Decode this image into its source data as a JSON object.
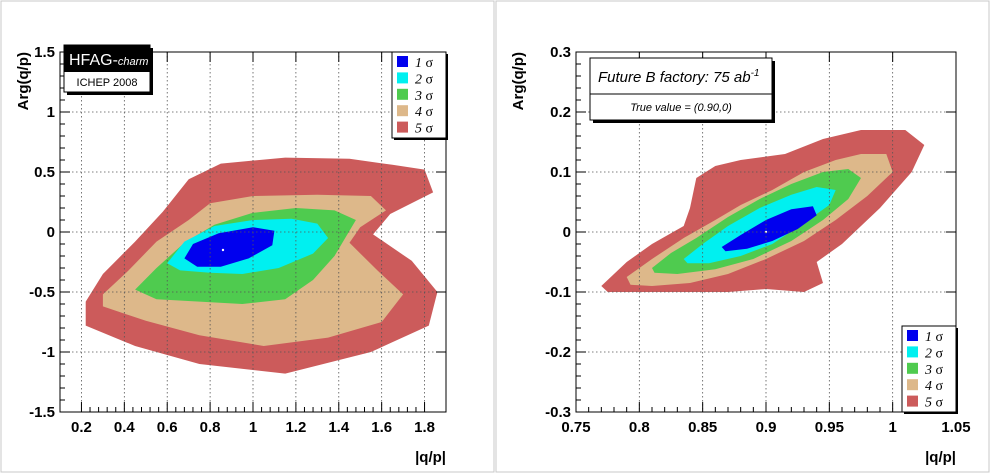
{
  "chart_data": [
    {
      "type": "contour",
      "title": "",
      "xlabel": "|q/p|",
      "ylabel": "Arg(q/p)",
      "xlim": [
        0.1,
        1.9
      ],
      "ylim": [
        -1.5,
        1.5
      ],
      "x_ticks": [
        0.2,
        0.4,
        0.6,
        0.8,
        1,
        1.2,
        1.4,
        1.6,
        1.8
      ],
      "y_ticks": [
        -1.5,
        -1,
        -0.5,
        0,
        0.5,
        1,
        1.5
      ],
      "grid": true,
      "legend_position": "top-right",
      "badge": {
        "title_main": "HFAG-",
        "title_sub": "charm",
        "subtitle": "ICHEP 2008"
      },
      "central_value": [
        0.86,
        -0.15
      ],
      "series": [
        {
          "name": "5",
          "color": "#cc5b5b",
          "polygon": [
            [
              0.22,
              -0.58
            ],
            [
              0.3,
              -0.35
            ],
            [
              0.45,
              -0.08
            ],
            [
              0.58,
              0.17
            ],
            [
              0.7,
              0.44
            ],
            [
              0.85,
              0.57
            ],
            [
              1.15,
              0.62
            ],
            [
              1.45,
              0.61
            ],
            [
              1.65,
              0.56
            ],
            [
              1.8,
              0.52
            ],
            [
              1.84,
              0.33
            ],
            [
              1.64,
              0.15
            ],
            [
              1.56,
              -0.02
            ],
            [
              1.74,
              -0.24
            ],
            [
              1.86,
              -0.5
            ],
            [
              1.82,
              -0.78
            ],
            [
              1.55,
              -1.0
            ],
            [
              1.15,
              -1.18
            ],
            [
              0.75,
              -1.1
            ],
            [
              0.45,
              -0.95
            ],
            [
              0.22,
              -0.78
            ]
          ]
        },
        {
          "name": "4",
          "color": "#ddb88a",
          "polygon": [
            [
              0.3,
              -0.52
            ],
            [
              0.42,
              -0.32
            ],
            [
              0.55,
              -0.08
            ],
            [
              0.7,
              0.1
            ],
            [
              0.8,
              0.24
            ],
            [
              1.0,
              0.3
            ],
            [
              1.3,
              0.31
            ],
            [
              1.55,
              0.3
            ],
            [
              1.62,
              0.18
            ],
            [
              1.5,
              0.04
            ],
            [
              1.45,
              -0.09
            ],
            [
              1.58,
              -0.32
            ],
            [
              1.7,
              -0.52
            ],
            [
              1.6,
              -0.75
            ],
            [
              1.35,
              -0.88
            ],
            [
              1.05,
              -0.95
            ],
            [
              0.75,
              -0.86
            ],
            [
              0.5,
              -0.74
            ],
            [
              0.3,
              -0.62
            ]
          ]
        },
        {
          "name": "3",
          "color": "#4fcb4f",
          "polygon": [
            [
              0.45,
              -0.48
            ],
            [
              0.55,
              -0.3
            ],
            [
              0.68,
              -0.09
            ],
            [
              0.82,
              0.06
            ],
            [
              1.0,
              0.16
            ],
            [
              1.2,
              0.2
            ],
            [
              1.38,
              0.18
            ],
            [
              1.48,
              0.1
            ],
            [
              1.43,
              -0.05
            ],
            [
              1.38,
              -0.2
            ],
            [
              1.28,
              -0.4
            ],
            [
              1.15,
              -0.56
            ],
            [
              0.95,
              -0.6
            ],
            [
              0.75,
              -0.58
            ],
            [
              0.55,
              -0.56
            ]
          ]
        },
        {
          "name": "2",
          "color": "#00f0f0",
          "polygon": [
            [
              0.6,
              -0.26
            ],
            [
              0.68,
              -0.08
            ],
            [
              0.82,
              0.05
            ],
            [
              1.0,
              0.1
            ],
            [
              1.18,
              0.11
            ],
            [
              1.3,
              0.07
            ],
            [
              1.35,
              -0.05
            ],
            [
              1.28,
              -0.18
            ],
            [
              1.12,
              -0.3
            ],
            [
              0.95,
              -0.35
            ],
            [
              0.8,
              -0.34
            ],
            [
              0.66,
              -0.32
            ]
          ]
        },
        {
          "name": "1",
          "color": "#0000ee",
          "polygon": [
            [
              0.68,
              -0.22
            ],
            [
              0.72,
              -0.1
            ],
            [
              0.84,
              -0.01
            ],
            [
              1.0,
              0.04
            ],
            [
              1.1,
              0.01
            ],
            [
              1.09,
              -0.11
            ],
            [
              0.98,
              -0.22
            ],
            [
              0.85,
              -0.29
            ],
            [
              0.74,
              -0.29
            ]
          ]
        }
      ]
    },
    {
      "type": "contour",
      "title": "",
      "xlabel": "|q/p|",
      "ylabel": "Arg(q/p)",
      "xlim": [
        0.75,
        1.05
      ],
      "ylim": [
        -0.3,
        0.3
      ],
      "x_ticks": [
        0.75,
        0.8,
        0.85,
        0.9,
        0.95,
        1,
        1.05
      ],
      "y_ticks": [
        -0.3,
        -0.2,
        -0.1,
        0,
        0.1,
        0.2,
        0.3
      ],
      "grid": true,
      "legend_position": "bottom-right",
      "badge": {
        "title": "Future B factory: 75 ab",
        "title_sup": "-1",
        "subtitle": "True value = (0.90,0)"
      },
      "central_value": [
        0.9,
        0
      ],
      "series": [
        {
          "name": "5",
          "color": "#cc5b5b",
          "polygon": [
            [
              0.77,
              -0.09
            ],
            [
              0.79,
              -0.05
            ],
            [
              0.81,
              -0.02
            ],
            [
              0.835,
              0.01
            ],
            [
              0.84,
              0.04
            ],
            [
              0.845,
              0.09
            ],
            [
              0.86,
              0.11
            ],
            [
              0.88,
              0.12
            ],
            [
              0.915,
              0.13
            ],
            [
              0.945,
              0.155
            ],
            [
              0.975,
              0.17
            ],
            [
              1.01,
              0.17
            ],
            [
              1.025,
              0.145
            ],
            [
              1.015,
              0.1
            ],
            [
              0.99,
              0.04
            ],
            [
              0.96,
              -0.02
            ],
            [
              0.94,
              -0.05
            ],
            [
              0.945,
              -0.085
            ],
            [
              0.93,
              -0.1
            ],
            [
              0.9,
              -0.095
            ],
            [
              0.87,
              -0.1
            ],
            [
              0.835,
              -0.1
            ],
            [
              0.8,
              -0.1
            ],
            [
              0.775,
              -0.1
            ]
          ]
        },
        {
          "name": "4",
          "color": "#ddb88a",
          "polygon": [
            [
              0.79,
              -0.075
            ],
            [
              0.81,
              -0.045
            ],
            [
              0.835,
              -0.01
            ],
            [
              0.86,
              0.02
            ],
            [
              0.88,
              0.045
            ],
            [
              0.905,
              0.07
            ],
            [
              0.93,
              0.1
            ],
            [
              0.955,
              0.12
            ],
            [
              0.975,
              0.13
            ],
            [
              0.995,
              0.13
            ],
            [
              1.0,
              0.1
            ],
            [
              0.98,
              0.06
            ],
            [
              0.955,
              0.02
            ],
            [
              0.93,
              -0.015
            ],
            [
              0.9,
              -0.045
            ],
            [
              0.87,
              -0.07
            ],
            [
              0.84,
              -0.085
            ],
            [
              0.81,
              -0.09
            ],
            [
              0.793,
              -0.088
            ]
          ]
        },
        {
          "name": "3",
          "color": "#4fcb4f",
          "polygon": [
            [
              0.81,
              -0.06
            ],
            [
              0.825,
              -0.035
            ],
            [
              0.845,
              -0.01
            ],
            [
              0.87,
              0.025
            ],
            [
              0.895,
              0.055
            ],
            [
              0.92,
              0.08
            ],
            [
              0.945,
              0.1
            ],
            [
              0.965,
              0.105
            ],
            [
              0.975,
              0.09
            ],
            [
              0.965,
              0.055
            ],
            [
              0.945,
              0.02
            ],
            [
              0.92,
              -0.015
            ],
            [
              0.89,
              -0.045
            ],
            [
              0.86,
              -0.062
            ],
            [
              0.83,
              -0.07
            ],
            [
              0.812,
              -0.068
            ]
          ]
        },
        {
          "name": "2",
          "color": "#00f0f0",
          "polygon": [
            [
              0.835,
              -0.045
            ],
            [
              0.85,
              -0.02
            ],
            [
              0.87,
              0.01
            ],
            [
              0.895,
              0.04
            ],
            [
              0.92,
              0.062
            ],
            [
              0.94,
              0.075
            ],
            [
              0.955,
              0.07
            ],
            [
              0.95,
              0.045
            ],
            [
              0.93,
              0.015
            ],
            [
              0.905,
              -0.02
            ],
            [
              0.88,
              -0.04
            ],
            [
              0.855,
              -0.052
            ],
            [
              0.838,
              -0.052
            ]
          ]
        },
        {
          "name": "1",
          "color": "#0000ee",
          "polygon": [
            [
              0.865,
              -0.025
            ],
            [
              0.88,
              -0.005
            ],
            [
              0.9,
              0.02
            ],
            [
              0.92,
              0.038
            ],
            [
              0.937,
              0.043
            ],
            [
              0.94,
              0.028
            ],
            [
              0.925,
              0.005
            ],
            [
              0.905,
              -0.015
            ],
            [
              0.885,
              -0.028
            ],
            [
              0.868,
              -0.032
            ]
          ]
        }
      ]
    }
  ]
}
